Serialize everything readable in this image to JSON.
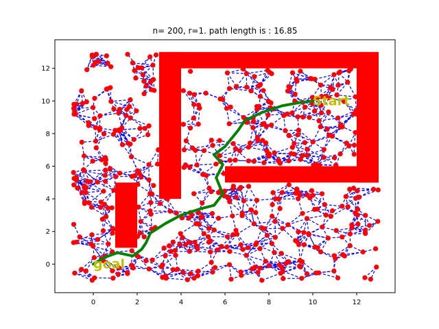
{
  "chart_data": {
    "type": "scatter",
    "title": "n= 200, r=1. path length is : 16.85",
    "xlabel": "",
    "ylabel": "",
    "xlim": [
      -1.75,
      13.75
    ],
    "ylim": [
      -1.75,
      13.75
    ],
    "xticks": [
      0,
      2,
      4,
      6,
      8,
      10,
      12
    ],
    "yticks": [
      0,
      2,
      4,
      6,
      8,
      10,
      12
    ],
    "grid": false,
    "legend": "none",
    "colors": {
      "nodes": "#ff0000",
      "edges": "#0000ff",
      "obstacles": "#ff0000",
      "path": "#008000",
      "labels": "#bfbf00"
    },
    "obstacles": [
      {
        "x": 3.0,
        "y": 12.0,
        "w": 10.0,
        "h": 1.0
      },
      {
        "x": 3.0,
        "y": 4.0,
        "w": 1.0,
        "h": 9.0
      },
      {
        "x": 12.0,
        "y": 5.0,
        "w": 1.0,
        "h": 8.0
      },
      {
        "x": 6.0,
        "y": 5.0,
        "w": 7.0,
        "h": 1.0
      },
      {
        "x": 1.0,
        "y": 1.0,
        "w": 1.0,
        "h": 4.0
      }
    ],
    "path": {
      "x": [
        10.0,
        9.4,
        8.6,
        7.7,
        6.9,
        6.6,
        6.0,
        5.5,
        5.9,
        5.6,
        5.9,
        5.5,
        4.9,
        4.0,
        3.3,
        2.6,
        2.4,
        2.2,
        1.8,
        1.1,
        0.5,
        0.0
      ],
      "y": [
        10.0,
        9.9,
        9.7,
        9.3,
        8.8,
        8.2,
        7.2,
        6.7,
        6.1,
        5.3,
        4.3,
        3.6,
        3.4,
        3.0,
        2.5,
        1.9,
        1.3,
        0.9,
        0.5,
        0.7,
        0.4,
        0.0
      ]
    },
    "annotations": [
      {
        "text": "Start",
        "x": 10.0,
        "y": 10.0
      },
      {
        "text": "goal",
        "x": 0.0,
        "y": 0.0
      }
    ]
  }
}
